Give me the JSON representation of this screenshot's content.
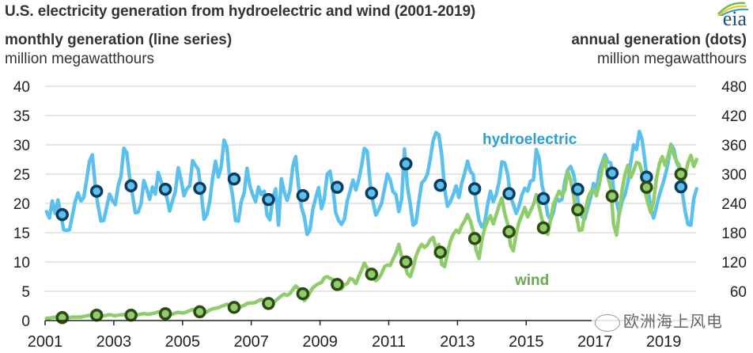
{
  "header": {
    "title": "U.S. electricity generation from hydroelectric and wind (2001-2019)",
    "left_subtitle": "monthly generation (line series)",
    "left_unit": "million megawatthours",
    "right_subtitle": "annual generation (dots)",
    "right_unit": "million megawatthours",
    "logo_text": "eia"
  },
  "watermark": {
    "text": "欧洲海上风电",
    "icon": "wechat-icon"
  },
  "chart_data": {
    "type": "line",
    "title": "U.S. electricity generation from hydroelectric and wind (2001-2019)",
    "xlabel": "",
    "ylabel_left": "monthly generation (line series), million megawatthours",
    "ylabel_right": "annual generation (dots), million megawatthours",
    "x_range": [
      2001,
      2020
    ],
    "ylim_left": [
      0,
      40
    ],
    "ylim_right": [
      0,
      480
    ],
    "y_ticks_left": [
      "0",
      "5",
      "10",
      "15",
      "20",
      "25",
      "30",
      "35",
      "40"
    ],
    "y_ticks_right": [
      "",
      "60",
      "120",
      "180",
      "240",
      "300",
      "360",
      "420",
      "480"
    ],
    "x_ticks": [
      "2001",
      "2003",
      "2005",
      "2007",
      "2009",
      "2011",
      "2013",
      "2015",
      "2017",
      "2019"
    ],
    "grid": "horizontal",
    "colors": {
      "hydro_line": "#5bc0eb",
      "hydro_dot_stroke": "#0b3c5d",
      "hydro_label": "#2a9fd6",
      "wind_line": "#8fcc6a",
      "wind_dot_stroke": "#2d4a14",
      "wind_label": "#6aa84f",
      "grid": "#dddddd",
      "axis": "#222222"
    },
    "series_labels": [
      {
        "name": "hydroelectric",
        "series": "hydro",
        "position": "upper-right"
      },
      {
        "name": "wind",
        "series": "wind",
        "position": "lower-middle"
      }
    ],
    "series": [
      {
        "name": "hydroelectric monthly",
        "key": "hydro_monthly",
        "start": 2001,
        "values": [
          18.6,
          17.5,
          20.4,
          18.3,
          20.6,
          18.2,
          15.5,
          15.4,
          15.5,
          17.8,
          20.3,
          21.8,
          20.4,
          21.0,
          24.0,
          27.2,
          28.3,
          23.0,
          19.6,
          17.0,
          17.1,
          19.3,
          21.6,
          20.5,
          19.8,
          22.9,
          24.7,
          29.4,
          28.7,
          24.5,
          21.5,
          18.4,
          18.5,
          19.9,
          23.9,
          22.5,
          20.7,
          22.8,
          21.6,
          25.3,
          23.8,
          22.2,
          21.0,
          18.7,
          20.5,
          22.0,
          26.1,
          24.0,
          21.3,
          22.5,
          23.0,
          27.3,
          26.5,
          25.8,
          22.0,
          17.3,
          18.1,
          20.4,
          24.3,
          27.2,
          24.5,
          26.3,
          30.8,
          29.6,
          24.0,
          21.2,
          17.1,
          17.0,
          20.3,
          21.7,
          26.0,
          23.0,
          21.5,
          20.3,
          22.8,
          21.5,
          22.1,
          18.0,
          17.2,
          20.9,
          22.5,
          16.3,
          24.2,
          22.0,
          20.5,
          22.2,
          26.3,
          28.0,
          23.0,
          19.4,
          17.7,
          14.7,
          15.5,
          19.0,
          21.0,
          22.7,
          19.1,
          20.8,
          25.0,
          25.5,
          22.6,
          18.4,
          17.1,
          16.4,
          17.3,
          20.4,
          22.1,
          24.0,
          22.3,
          24.0,
          26.4,
          29.4,
          28.9,
          23.4,
          20.2,
          18.0,
          18.9,
          20.0,
          22.5,
          25.0,
          24.0,
          22.0,
          21.5,
          18.6,
          20.7,
          29.3,
          23.0,
          19.8,
          16.3,
          16.7,
          20.3,
          23.5,
          24.0,
          25.0,
          27.6,
          30.7,
          32.1,
          31.7,
          28.2,
          22.5,
          19.5,
          20.3,
          21.5,
          23.0,
          21.0,
          23.5,
          25.2,
          27.2,
          25.5,
          24.9,
          20.1,
          17.1,
          16.0,
          16.7,
          19.7,
          22.1,
          20.3,
          21.5,
          23.6,
          27.1,
          26.9,
          25.0,
          21.3,
          19.8,
          18.3,
          19.5,
          21.5,
          22.6,
          22.1,
          23.8,
          24.0,
          29.2,
          27.7,
          23.2,
          21.0,
          18.0,
          17.2,
          18.5,
          21.0,
          20.4,
          20.7,
          23.8,
          25.7,
          26.3,
          25.1,
          22.5,
          19.0,
          17.7,
          17.4,
          19.3,
          21.0,
          23.4,
          22.1,
          25.5,
          27.0,
          28.3,
          27.1,
          26.9,
          22.5,
          20.3,
          18.2,
          20.4,
          21.5,
          23.6,
          27.0,
          30.0,
          29.2,
          32.3,
          30.8,
          27.0,
          22.7,
          19.0,
          17.5,
          19.5,
          21.5,
          23.0,
          24.7,
          26.8,
          30.1,
          29.3,
          27.0,
          26.0,
          22.0,
          18.6,
          16.4,
          16.3,
          20.8,
          22.5
        ]
      },
      {
        "name": "wind monthly",
        "key": "wind_monthly",
        "start": 2001,
        "values": [
          0.4,
          0.4,
          0.5,
          0.6,
          0.5,
          0.5,
          0.4,
          0.4,
          0.5,
          0.6,
          0.6,
          0.6,
          0.6,
          0.7,
          0.8,
          0.9,
          1.0,
          0.9,
          0.8,
          0.7,
          0.8,
          0.9,
          1.0,
          0.9,
          0.8,
          0.9,
          1.0,
          1.0,
          1.1,
          1.2,
          1.0,
          0.9,
          1.0,
          1.1,
          1.2,
          1.1,
          1.1,
          1.2,
          1.3,
          1.5,
          1.3,
          1.2,
          1.0,
          1.0,
          1.1,
          1.3,
          1.4,
          1.3,
          1.3,
          1.5,
          1.7,
          1.9,
          1.6,
          1.5,
          1.4,
          1.3,
          1.5,
          1.8,
          2.0,
          2.1,
          2.2,
          2.4,
          2.6,
          2.8,
          2.4,
          2.3,
          2.0,
          2.0,
          2.4,
          2.6,
          2.9,
          3.0,
          3.0,
          3.1,
          3.4,
          3.6,
          3.4,
          3.1,
          2.8,
          3.0,
          3.4,
          3.8,
          4.2,
          4.5,
          4.3,
          4.6,
          5.3,
          5.9,
          5.5,
          4.3,
          3.4,
          3.9,
          4.8,
          5.6,
          6.0,
          6.3,
          6.5,
          7.3,
          7.5,
          7.2,
          7.0,
          6.5,
          5.5,
          5.4,
          6.1,
          6.3,
          7.2,
          7.0,
          6.3,
          7.5,
          8.6,
          9.8,
          8.9,
          8.3,
          7.3,
          6.8,
          7.2,
          8.0,
          9.2,
          9.5,
          9.4,
          10.5,
          11.5,
          13.0,
          11.0,
          9.8,
          8.0,
          7.5,
          9.0,
          11.0,
          12.2,
          13.0,
          12.5,
          12.9,
          13.8,
          14.2,
          12.4,
          13.0,
          9.6,
          9.2,
          11.5,
          13.5,
          14.7,
          15.4,
          15.0,
          16.2,
          17.0,
          18.1,
          17.0,
          15.2,
          12.0,
          10.6,
          13.7,
          15.8,
          17.0,
          17.9,
          16.5,
          18.0,
          19.6,
          20.9,
          18.3,
          16.5,
          12.8,
          11.9,
          14.8,
          16.8,
          18.0,
          19.3,
          17.7,
          18.7,
          19.8,
          21.5,
          19.4,
          17.3,
          15.5,
          14.7,
          17.2,
          19.9,
          21.0,
          22.1,
          21.3,
          22.3,
          25.5,
          24.0,
          21.5,
          18.0,
          15.4,
          15.5,
          18.2,
          20.8,
          22.0,
          22.4,
          21.3,
          23.2,
          26.0,
          27.7,
          24.5,
          22.7,
          16.5,
          14.6,
          18.5,
          22.4,
          25.0,
          26.5,
          24.4,
          25.6,
          27.0,
          26.8,
          25.2,
          22.0,
          20.0,
          18.4,
          20.5,
          24.3,
          26.8,
          28.0,
          26.5,
          28.0,
          30.0,
          28.3,
          27.2,
          26.5,
          22.5,
          25.0,
          27.0,
          28.2,
          26.3,
          27.5
        ]
      },
      {
        "name": "hydroelectric annual",
        "key": "hydro_annual",
        "values": [
          217,
          265,
          276,
          269,
          271,
          290,
          248,
          256,
          273,
          261,
          321,
          277,
          270,
          260,
          250,
          269,
          302,
          294,
          274
        ]
      },
      {
        "name": "wind annual",
        "key": "wind_annual",
        "values": [
          6,
          11,
          11,
          14,
          18,
          27,
          35,
          55,
          74,
          95,
          120,
          140,
          168,
          182,
          190,
          227,
          255,
          273,
          300
        ]
      }
    ]
  }
}
